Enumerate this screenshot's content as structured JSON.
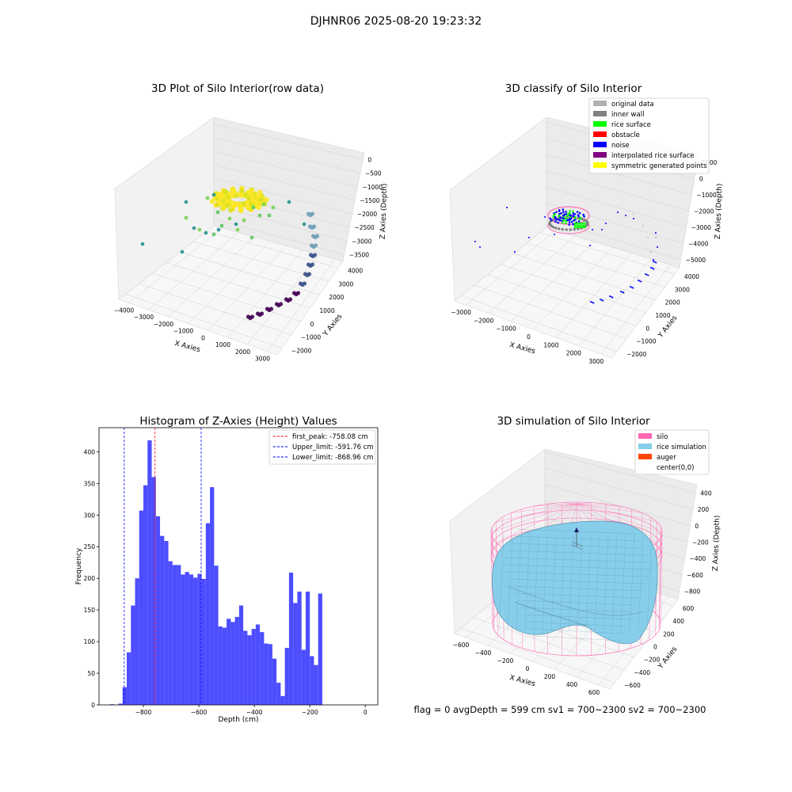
{
  "figure": {
    "suptitle": "DJHNR06 2025-08-20 19:23:32",
    "footer": "flag = 0     avgDepth = 599 cm  sv1 = 700~2300  sv2 = 700~2300"
  },
  "chart_data": [
    {
      "type": "scatter3d",
      "title": "3D Plot of Silo Interior(row data)",
      "xlabel": "X Axies",
      "ylabel": "Y Axies",
      "zlabel": "Z Axies (Depth)",
      "x_ticks": [
        "−4000",
        "−3000",
        "−2000",
        "−1000",
        "0",
        "1000",
        "2000",
        "3000"
      ],
      "y_ticks": [
        "−2000",
        "−1000",
        "0",
        "1000",
        "2000",
        "3000",
        "4000"
      ],
      "z_ticks": [
        "0",
        "−500",
        "−1000",
        "−1500",
        "−2000",
        "−2500",
        "−3000",
        "−3500"
      ],
      "colormap": [
        "#440154",
        "#3b528b",
        "#21908d",
        "#5dc863",
        "#fde725"
      ]
    },
    {
      "type": "scatter3d",
      "title": "3D classify of Silo Interior",
      "xlabel": "X Axies",
      "ylabel": "Y Axies",
      "zlabel": "Z Axies (Depth)",
      "x_ticks": [
        "−3000",
        "−2000",
        "−1000",
        "0",
        "1000",
        "2000",
        "3000"
      ],
      "y_ticks": [
        "−2000",
        "−1000",
        "0",
        "1000",
        "2000",
        "3000",
        "4000"
      ],
      "z_ticks": [
        "1000",
        "0",
        "−1000",
        "−2000",
        "−3000",
        "−4000",
        "−5000"
      ],
      "legend": [
        {
          "label": "original data",
          "color": "#b0b0b0"
        },
        {
          "label": "inner wall",
          "color": "#808080"
        },
        {
          "label": "rice surface",
          "color": "#00ff00"
        },
        {
          "label": "obstacle",
          "color": "#ff0000"
        },
        {
          "label": "noise",
          "color": "#0000ff"
        },
        {
          "label": "interpolated rice surface",
          "color": "#800080"
        },
        {
          "label": "symmetric generated points",
          "color": "#ffff00"
        }
      ]
    },
    {
      "type": "bar",
      "title": "Histogram of Z-Axies (Height) Values",
      "xlabel": "Depth (cm)",
      "ylabel": "Frequency",
      "xlim": [
        -960,
        45
      ],
      "ylim": [
        0,
        438
      ],
      "x_ticks": [
        -800,
        -600,
        -400,
        -200,
        0
      ],
      "y_ticks": [
        0,
        50,
        100,
        150,
        200,
        250,
        300,
        350,
        400
      ],
      "bar_color": "#4d4dff",
      "bin_width": 15,
      "bins": [
        {
          "x": -920,
          "value": 1
        },
        {
          "x": -905,
          "value": 0
        },
        {
          "x": -890,
          "value": 2
        },
        {
          "x": -875,
          "value": 28
        },
        {
          "x": -860,
          "value": 83
        },
        {
          "x": -845,
          "value": 157
        },
        {
          "x": -830,
          "value": 200
        },
        {
          "x": -815,
          "value": 307
        },
        {
          "x": -800,
          "value": 347
        },
        {
          "x": -785,
          "value": 418
        },
        {
          "x": -770,
          "value": 360
        },
        {
          "x": -755,
          "value": 298
        },
        {
          "x": -740,
          "value": 267
        },
        {
          "x": -725,
          "value": 259
        },
        {
          "x": -710,
          "value": 227
        },
        {
          "x": -695,
          "value": 221
        },
        {
          "x": -680,
          "value": 221
        },
        {
          "x": -665,
          "value": 206
        },
        {
          "x": -650,
          "value": 210
        },
        {
          "x": -635,
          "value": 206
        },
        {
          "x": -620,
          "value": 201
        },
        {
          "x": -605,
          "value": 207
        },
        {
          "x": -590,
          "value": 199
        },
        {
          "x": -575,
          "value": 287
        },
        {
          "x": -560,
          "value": 344
        },
        {
          "x": -545,
          "value": 220
        },
        {
          "x": -530,
          "value": 124
        },
        {
          "x": -515,
          "value": 122
        },
        {
          "x": -500,
          "value": 136
        },
        {
          "x": -485,
          "value": 131
        },
        {
          "x": -470,
          "value": 139
        },
        {
          "x": -455,
          "value": 157
        },
        {
          "x": -440,
          "value": 117
        },
        {
          "x": -425,
          "value": 110
        },
        {
          "x": -410,
          "value": 120
        },
        {
          "x": -395,
          "value": 127
        },
        {
          "x": -380,
          "value": 115
        },
        {
          "x": -365,
          "value": 97
        },
        {
          "x": -350,
          "value": 96
        },
        {
          "x": -335,
          "value": 73
        },
        {
          "x": -320,
          "value": 35
        },
        {
          "x": -305,
          "value": 14
        },
        {
          "x": -290,
          "value": 90
        },
        {
          "x": -275,
          "value": 209
        },
        {
          "x": -260,
          "value": 161
        },
        {
          "x": -245,
          "value": 179
        },
        {
          "x": -230,
          "value": 87
        },
        {
          "x": -215,
          "value": 179
        },
        {
          "x": -200,
          "value": 77
        },
        {
          "x": -185,
          "value": 63
        },
        {
          "x": -170,
          "value": 176
        }
      ],
      "vlines": [
        {
          "label": "first_peak: -758.08 cm",
          "x": -758.08,
          "color": "#ff0000"
        },
        {
          "label": "Upper_limit: -591.76 cm",
          "x": -591.76,
          "color": "#0000ff"
        },
        {
          "label": "Lower_limit: -868.96 cm",
          "x": -868.96,
          "color": "#0000ff"
        }
      ]
    },
    {
      "type": "surface3d",
      "title": "3D simulation of Silo Interior",
      "xlabel": "X Axies",
      "ylabel": "Y Axies",
      "zlabel": "Z Axies (Depth)",
      "x_ticks": [
        "−600",
        "−400",
        "−200",
        "0",
        "200",
        "400",
        "600"
      ],
      "y_ticks": [
        "−600",
        "−400",
        "−200",
        "0",
        "200",
        "400",
        "600"
      ],
      "z_ticks": [
        "400",
        "200",
        "0",
        "−200",
        "−400",
        "−600",
        "−800"
      ],
      "legend": [
        {
          "label": "silo",
          "color": "#ff69b4"
        },
        {
          "label": "rice simulation",
          "color": "#87ceeb"
        },
        {
          "label": "auger",
          "color": "#ff4500"
        },
        {
          "label": "center(0,0)",
          "color": ""
        }
      ]
    }
  ]
}
